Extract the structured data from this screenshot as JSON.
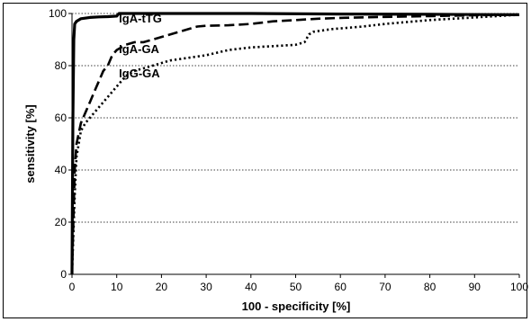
{
  "chart_data": {
    "type": "line",
    "xlabel": "100 - specificity [%]",
    "ylabel": "sensitivity [%]",
    "xlim": [
      0,
      100
    ],
    "ylim": [
      0,
      100
    ],
    "x_ticks": [
      0,
      10,
      20,
      30,
      40,
      50,
      60,
      70,
      80,
      90,
      100
    ],
    "y_ticks": [
      0,
      20,
      40,
      60,
      80,
      100
    ],
    "grid": "horizontal dotted",
    "legend": "inline labels",
    "series": [
      {
        "name": "IgA-tTG",
        "style": "solid",
        "color": "#000000",
        "points": [
          [
            0,
            0
          ],
          [
            0.2,
            60
          ],
          [
            0.4,
            90
          ],
          [
            0.6,
            96
          ],
          [
            1,
            97
          ],
          [
            2,
            98
          ],
          [
            4,
            98.5
          ],
          [
            6,
            98.7
          ],
          [
            8,
            98.8
          ],
          [
            10,
            99
          ],
          [
            10.5,
            100
          ],
          [
            20,
            100
          ],
          [
            40,
            100
          ],
          [
            60,
            99.8
          ],
          [
            80,
            99.7
          ],
          [
            100,
            99.5
          ]
        ]
      },
      {
        "name": "IgA-GA",
        "style": "dashed",
        "color": "#000000",
        "points": [
          [
            0,
            0
          ],
          [
            0.3,
            20
          ],
          [
            0.6,
            40
          ],
          [
            1,
            50
          ],
          [
            2,
            58
          ],
          [
            3,
            62
          ],
          [
            4,
            66
          ],
          [
            5,
            70
          ],
          [
            6,
            74
          ],
          [
            7,
            78
          ],
          [
            8,
            80
          ],
          [
            9,
            84
          ],
          [
            10,
            86
          ],
          [
            11,
            87
          ],
          [
            12,
            88
          ],
          [
            14,
            89
          ],
          [
            16,
            89
          ],
          [
            18,
            90
          ],
          [
            20,
            91
          ],
          [
            22,
            92
          ],
          [
            24,
            93
          ],
          [
            26,
            94
          ],
          [
            28,
            95
          ],
          [
            30,
            95.3
          ],
          [
            35,
            95.5
          ],
          [
            40,
            96
          ],
          [
            45,
            97
          ],
          [
            50,
            97.5
          ],
          [
            55,
            98
          ],
          [
            60,
            98.3
          ],
          [
            70,
            98.7
          ],
          [
            80,
            99
          ],
          [
            90,
            99.3
          ],
          [
            100,
            99.5
          ]
        ]
      },
      {
        "name": "IgG-GA",
        "style": "dotted",
        "color": "#000000",
        "points": [
          [
            0,
            0
          ],
          [
            0.3,
            15
          ],
          [
            0.6,
            30
          ],
          [
            1,
            45
          ],
          [
            2,
            55
          ],
          [
            3,
            58
          ],
          [
            5,
            62
          ],
          [
            7,
            66
          ],
          [
            9,
            70
          ],
          [
            10,
            72
          ],
          [
            12,
            76
          ],
          [
            14,
            78
          ],
          [
            18,
            80
          ],
          [
            22,
            82
          ],
          [
            26,
            83
          ],
          [
            30,
            84
          ],
          [
            35,
            86
          ],
          [
            40,
            87
          ],
          [
            45,
            87.5
          ],
          [
            50,
            88
          ],
          [
            52,
            89
          ],
          [
            53,
            92
          ],
          [
            54,
            93
          ],
          [
            58,
            94
          ],
          [
            65,
            95
          ],
          [
            70,
            96
          ],
          [
            80,
            97.5
          ],
          [
            90,
            98.5
          ],
          [
            100,
            99.5
          ]
        ]
      }
    ]
  }
}
